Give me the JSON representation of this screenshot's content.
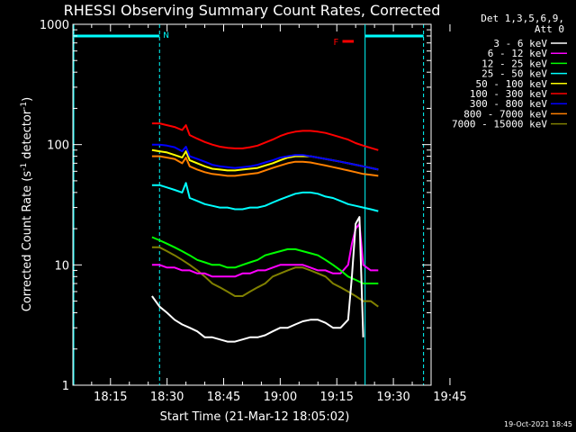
{
  "chart_data": {
    "type": "line",
    "title": "RHESSI Observing Summary Count Rates, Corrected",
    "xlabel": "Start Time (21-Mar-12 18:05:02)",
    "ylabel_main": "Corrected Count Rate (s",
    "ylabel_sup1": "-1",
    "ylabel_mid": " detector",
    "ylabel_sup2": "-1",
    "ylabel_end": ")",
    "y_scale": "log",
    "ylim": [
      1,
      1000
    ],
    "x_range_minutes": [
      5.03,
      100
    ],
    "x_ticks": [
      {
        "label": "18:15",
        "value": 15
      },
      {
        "label": "18:30",
        "value": 30
      },
      {
        "label": "18:45",
        "value": 45
      },
      {
        "label": "19:00",
        "value": 60
      },
      {
        "label": "19:15",
        "value": 75
      },
      {
        "label": "19:30",
        "value": 90
      },
      {
        "label": "19:45",
        "value": 105
      }
    ],
    "y_ticks": [
      {
        "label": "1",
        "value": 1
      },
      {
        "label": "10",
        "value": 10
      },
      {
        "label": "100",
        "value": 100
      },
      {
        "label": "1000",
        "value": 1000
      }
    ],
    "legend_header": [
      "Det 1,3,5,6,9,",
      "Att 0"
    ],
    "legend_placement": "right",
    "series": [
      {
        "name": "3 - 6 keV",
        "color": "#ffffff",
        "x": [
          26,
          28,
          30,
          32,
          34,
          36,
          38,
          40,
          42,
          44,
          46,
          48,
          50,
          52,
          54,
          56,
          58,
          60,
          62,
          64,
          66,
          68,
          70,
          72,
          74,
          76,
          78,
          79,
          80,
          81,
          82
        ],
        "y": [
          5.5,
          4.5,
          4,
          3.5,
          3.2,
          3,
          2.8,
          2.5,
          2.5,
          2.4,
          2.3,
          2.3,
          2.4,
          2.5,
          2.5,
          2.6,
          2.8,
          3,
          3,
          3.2,
          3.4,
          3.5,
          3.5,
          3.3,
          3,
          3,
          3.5,
          8,
          22,
          25,
          2.5
        ]
      },
      {
        "name": "6 - 12 keV",
        "color": "#ff00ff",
        "x": [
          26,
          28,
          30,
          32,
          34,
          36,
          38,
          40,
          42,
          44,
          46,
          48,
          50,
          52,
          54,
          56,
          58,
          60,
          62,
          64,
          66,
          68,
          70,
          72,
          74,
          76,
          78,
          79,
          80,
          81,
          82,
          84,
          86
        ],
        "y": [
          10,
          10,
          9.5,
          9.5,
          9,
          9,
          8.5,
          8.5,
          8,
          8,
          8,
          8,
          8.5,
          8.5,
          9,
          9,
          9.5,
          10,
          10,
          10,
          10,
          9.5,
          9,
          9,
          8.5,
          8.5,
          10,
          15,
          20,
          22,
          10,
          9,
          9
        ]
      },
      {
        "name": "12 - 25 keV",
        "color": "#00ff00",
        "x": [
          26,
          28,
          30,
          32,
          34,
          36,
          38,
          40,
          42,
          44,
          46,
          48,
          50,
          52,
          54,
          56,
          58,
          60,
          62,
          64,
          66,
          68,
          70,
          72,
          74,
          76,
          78,
          80,
          82,
          84,
          86
        ],
        "y": [
          17,
          16,
          15,
          14,
          13,
          12,
          11,
          10.5,
          10,
          10,
          9.5,
          9.5,
          10,
          10.5,
          11,
          12,
          12.5,
          13,
          13.5,
          13.5,
          13,
          12.5,
          12,
          11,
          10,
          9,
          8,
          7.5,
          7,
          7,
          7
        ]
      },
      {
        "name": "25 - 50 keV",
        "color": "#00ffff",
        "x": [
          26,
          28,
          30,
          32,
          34,
          35,
          36,
          38,
          40,
          42,
          44,
          46,
          48,
          50,
          52,
          54,
          56,
          58,
          60,
          62,
          64,
          66,
          68,
          70,
          72,
          74,
          76,
          78,
          80,
          82,
          84,
          86
        ],
        "y": [
          46,
          46,
          44,
          42,
          40,
          48,
          36,
          34,
          32,
          31,
          30,
          30,
          29,
          29,
          30,
          30,
          31,
          33,
          35,
          37,
          39,
          40,
          40,
          39,
          37,
          36,
          34,
          32,
          31,
          30,
          29,
          28
        ]
      },
      {
        "name": "50 - 100 keV",
        "color": "#ffff00",
        "x": [
          26,
          28,
          30,
          32,
          34,
          35,
          36,
          38,
          40,
          42,
          44,
          46,
          48,
          50,
          52,
          54,
          56,
          58,
          60,
          62,
          64,
          66,
          68,
          70,
          72,
          74,
          76,
          78,
          80,
          82,
          84,
          86
        ],
        "y": [
          90,
          88,
          86,
          82,
          78,
          88,
          74,
          70,
          66,
          63,
          62,
          61,
          61,
          62,
          63,
          64,
          67,
          70,
          74,
          78,
          80,
          80,
          80,
          78,
          76,
          74,
          72,
          70,
          68,
          66,
          64,
          62
        ]
      },
      {
        "name": "100 - 300 keV",
        "color": "#ff0000",
        "x": [
          26,
          28,
          30,
          32,
          34,
          35,
          36,
          38,
          40,
          42,
          44,
          46,
          48,
          50,
          52,
          54,
          56,
          58,
          60,
          62,
          64,
          66,
          68,
          70,
          72,
          74,
          76,
          78,
          80,
          82,
          84,
          86
        ],
        "y": [
          150,
          150,
          145,
          140,
          132,
          145,
          120,
          112,
          105,
          100,
          96,
          94,
          93,
          93,
          95,
          98,
          104,
          110,
          118,
          124,
          128,
          130,
          130,
          128,
          125,
          120,
          115,
          110,
          103,
          98,
          94,
          90
        ]
      },
      {
        "name": "300 - 800 keV",
        "color": "#0000ff",
        "x": [
          26,
          28,
          30,
          32,
          34,
          35,
          36,
          38,
          40,
          42,
          44,
          46,
          48,
          50,
          52,
          54,
          56,
          58,
          60,
          62,
          64,
          66,
          68,
          70,
          72,
          74,
          76,
          78,
          80,
          82,
          84,
          86
        ],
        "y": [
          100,
          100,
          98,
          95,
          88,
          96,
          80,
          76,
          72,
          68,
          66,
          65,
          64,
          65,
          66,
          68,
          71,
          74,
          78,
          80,
          82,
          82,
          80,
          78,
          76,
          74,
          72,
          70,
          68,
          66,
          64,
          62
        ]
      },
      {
        "name": "800 - 7000 keV",
        "color": "#ff8000",
        "x": [
          26,
          28,
          30,
          32,
          34,
          35,
          36,
          38,
          40,
          42,
          44,
          46,
          48,
          50,
          52,
          54,
          56,
          58,
          60,
          62,
          64,
          66,
          68,
          70,
          72,
          74,
          76,
          78,
          80,
          82,
          84,
          86
        ],
        "y": [
          80,
          80,
          78,
          76,
          70,
          78,
          66,
          62,
          59,
          57,
          56,
          55,
          55,
          56,
          57,
          58,
          61,
          64,
          67,
          70,
          72,
          72,
          71,
          69,
          67,
          65,
          63,
          61,
          59,
          57,
          56,
          55
        ]
      },
      {
        "name": "7000 - 15000 keV",
        "color": "#808000",
        "x": [
          26,
          28,
          30,
          32,
          34,
          36,
          38,
          40,
          42,
          44,
          46,
          48,
          50,
          52,
          54,
          56,
          58,
          60,
          62,
          64,
          66,
          68,
          70,
          72,
          74,
          76,
          78,
          80,
          82,
          84,
          86
        ],
        "y": [
          14,
          14,
          13,
          12,
          11,
          10,
          9,
          8,
          7,
          6.5,
          6,
          5.5,
          5.5,
          6,
          6.5,
          7,
          8,
          8.5,
          9,
          9.5,
          9.5,
          9,
          8.5,
          8,
          7,
          6.5,
          6,
          5.5,
          5,
          5,
          4.5
        ]
      }
    ],
    "attenuator_bars": [
      {
        "x_start": 5.03,
        "x_end": 28,
        "level": 800,
        "color": "#00ffff"
      },
      {
        "x_start": 82.5,
        "x_end": 98,
        "level": 800,
        "color": "#00ffff"
      }
    ],
    "flare_flag": {
      "x_start": 76.5,
      "x_end": 79.5,
      "level": 800,
      "color": "#ff0000",
      "label": "F"
    },
    "night_flag": {
      "label": "N",
      "color": "#00ffff"
    },
    "vertical_markers": [
      {
        "x": 28,
        "color": "#00ffff",
        "style": "dashed"
      },
      {
        "x": 82.5,
        "color": "#00ffff",
        "style": "solid"
      },
      {
        "x": 98,
        "color": "#00ffff",
        "style": "dashed"
      }
    ],
    "data_start_line": {
      "x": 5.03,
      "color": "#00ffff"
    },
    "grid": false
  },
  "footer": {
    "date_stamp": "19-Oct-2021 18:45"
  }
}
